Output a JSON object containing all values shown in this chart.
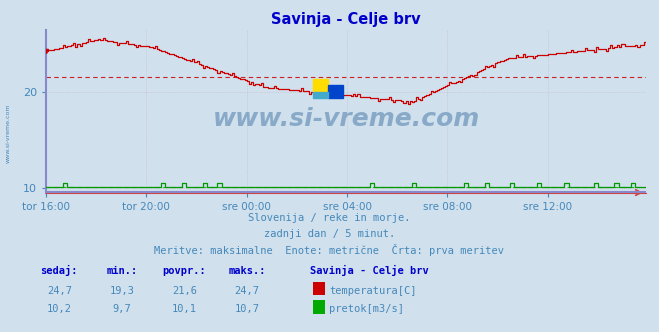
{
  "title": "Savinja - Celje brv",
  "title_color": "#0000cc",
  "bg_color": "#d0e0ec",
  "plot_bg_color": "#d0e0ec",
  "grid_color": "#c8b8c8",
  "watermark_text": "www.si-vreme.com",
  "watermark_color": "#88aac8",
  "subtitle_lines": [
    "Slovenija / reke in morje.",
    "zadnji dan / 5 minut.",
    "Meritve: maksimalne  Enote: metrične  Črta: prva meritev"
  ],
  "subtitle_color": "#4488bb",
  "footer_labels": [
    "sedaj:",
    "min.:",
    "povpr.:",
    "maks.:"
  ],
  "footer_label_color": "#0000cc",
  "footer_rows": [
    {
      "values": [
        "24,7",
        "19,3",
        "21,6",
        "24,7"
      ],
      "color": "#cc0000",
      "legend_label": "temperatura[C]"
    },
    {
      "values": [
        "10,2",
        "9,7",
        "10,1",
        "10,7"
      ],
      "color": "#00aa00",
      "legend_label": "pretok[m3/s]"
    }
  ],
  "footer_station": "Savinja - Celje brv",
  "xlabel_ticks": [
    "tor 16:00",
    "tor 20:00",
    "sre 00:00",
    "sre 04:00",
    "sre 08:00",
    "sre 12:00"
  ],
  "xlabel_tick_positions": [
    0,
    48,
    96,
    144,
    192,
    240
  ],
  "xlim": [
    0,
    287
  ],
  "ylim": [
    9.5,
    26.5
  ],
  "yticks": [
    10,
    20
  ],
  "temp_avg_line": 21.6,
  "flow_avg_line": 10.1,
  "axis_color": "#4488bb",
  "spine_left_color": "#8888cc",
  "spine_bottom_color": "#cc4444"
}
